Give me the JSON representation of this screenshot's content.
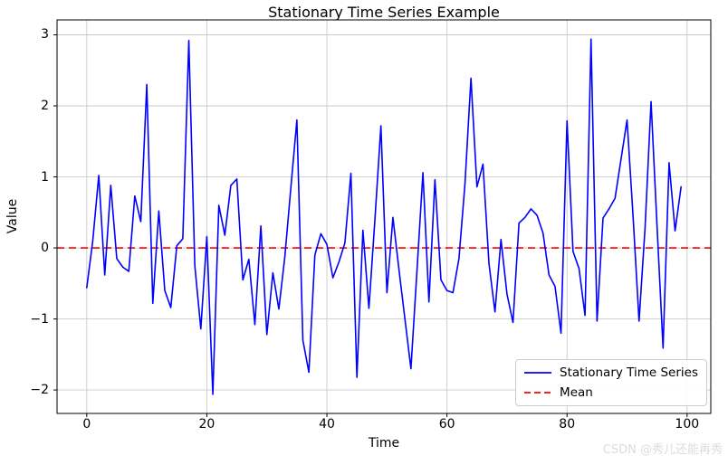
{
  "figure": {
    "title": "Stationary Time Series Example",
    "xlabel": "Time",
    "ylabel": "Value",
    "watermark": "CSDN @秀儿还能再秀"
  },
  "chart_data": {
    "type": "line",
    "title": "Stationary Time Series Example",
    "xlabel": "Time",
    "ylabel": "Value",
    "x_start": 0,
    "x_step": 1,
    "series": [
      {
        "name": "Stationary Time Series",
        "color": "#0000ff",
        "style": "solid",
        "values": [
          -0.56,
          0.1,
          1.02,
          -0.38,
          0.88,
          -0.15,
          -0.27,
          -0.33,
          0.73,
          0.37,
          2.3,
          -0.78,
          0.52,
          -0.6,
          -0.84,
          0.03,
          0.13,
          2.92,
          -0.25,
          -1.14,
          0.16,
          -2.06,
          0.6,
          0.18,
          0.88,
          0.97,
          -0.45,
          -0.16,
          -1.08,
          0.31,
          -1.22,
          -0.35,
          -0.86,
          -0.12,
          0.85,
          1.8,
          -1.3,
          -1.75,
          -0.1,
          0.2,
          0.05,
          -0.42,
          -0.2,
          0.07,
          1.05,
          -1.82,
          0.25,
          -0.85,
          0.4,
          1.72,
          -0.63,
          0.43,
          -0.3,
          -1.0,
          -1.7,
          -0.33,
          1.06,
          -0.76,
          0.96,
          -0.45,
          -0.6,
          -0.63,
          -0.15,
          0.9,
          2.39,
          0.86,
          1.18,
          -0.22,
          -0.9,
          0.12,
          -0.65,
          -1.05,
          0.35,
          0.43,
          0.55,
          0.46,
          0.21,
          -0.38,
          -0.54,
          -1.2,
          1.79,
          -0.05,
          -0.29,
          -0.95,
          2.94,
          -1.03,
          0.42,
          0.55,
          0.7,
          1.25,
          1.8,
          0.45,
          -1.03,
          0.28,
          2.06,
          0.3,
          -1.41,
          1.2,
          0.24,
          0.86
        ]
      },
      {
        "name": "Mean",
        "color": "#ff0000",
        "style": "dashed",
        "mean_value": 0
      }
    ],
    "xlim": [
      -4.95,
      103.95
    ],
    "ylim": [
      -2.33,
      3.21
    ],
    "x_ticks": {
      "values": [
        0,
        20,
        40,
        60,
        80,
        100
      ],
      "labels": [
        "0",
        "20",
        "40",
        "60",
        "80",
        "100"
      ]
    },
    "y_ticks": {
      "values": [
        -2,
        -1,
        0,
        1,
        2,
        3
      ],
      "labels": [
        "−2",
        "−1",
        "0",
        "1",
        "2",
        "3"
      ]
    },
    "grid": true,
    "legend_position": "lower right"
  },
  "legend": {
    "entries": [
      {
        "label": "Stationary Time Series",
        "color": "#0000ff",
        "dash": "solid"
      },
      {
        "label": "Mean",
        "color": "#ff0000",
        "dash": "dashed"
      }
    ]
  },
  "colors": {
    "series": "#0000ff",
    "mean": "#ff0000",
    "grid": "#c9c9c9",
    "frame": "#000000",
    "watermark": "#dcdcdc"
  }
}
